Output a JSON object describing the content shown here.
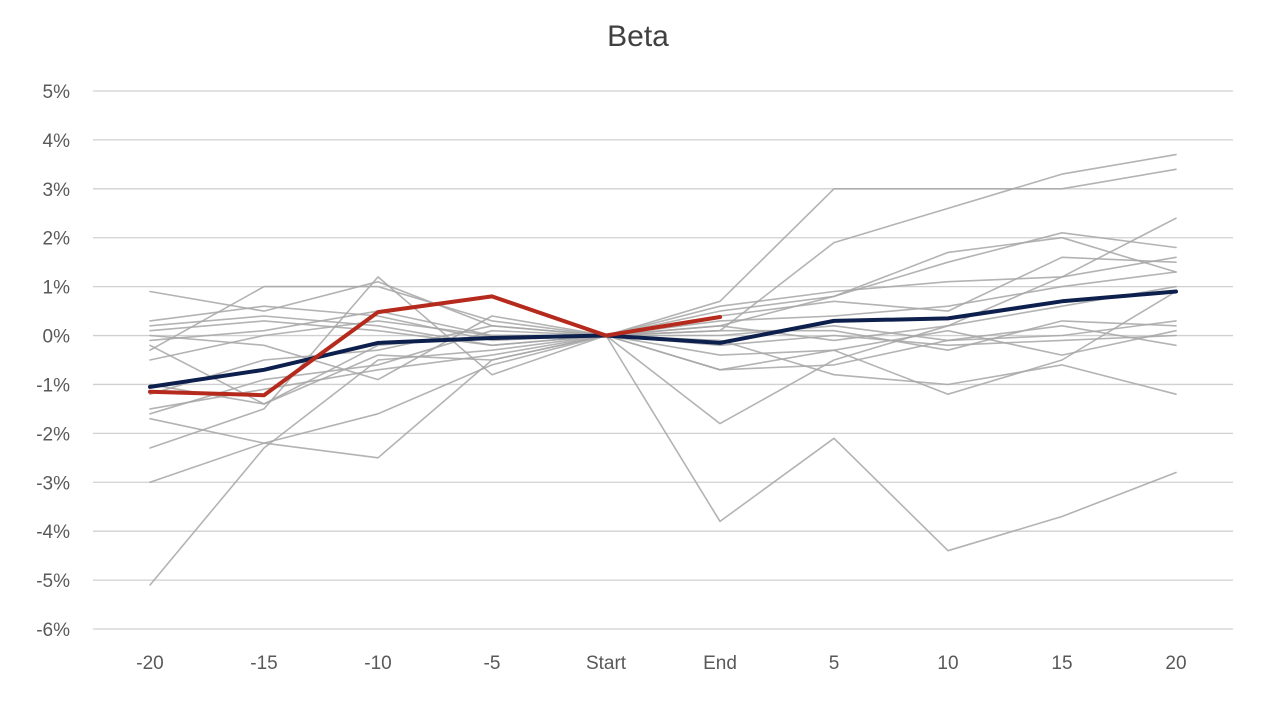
{
  "chart_data": {
    "type": "line",
    "title": "Beta",
    "xlabel": "",
    "ylabel": "",
    "categories": [
      "-20",
      "-15",
      "-10",
      "-5",
      "Start",
      "End",
      "5",
      "10",
      "15",
      "20"
    ],
    "ylim": [
      -6,
      5
    ],
    "yticks": [
      5,
      4,
      3,
      2,
      1,
      0,
      -1,
      -2,
      -3,
      -4,
      -5,
      -6
    ],
    "ytick_labels": [
      "5%",
      "4%",
      "3%",
      "2%",
      "1%",
      "0%",
      "-1%",
      "-2%",
      "-3%",
      "-4%",
      "-5%",
      "-6%"
    ],
    "grid": true,
    "legend": "none",
    "colors": {
      "background_series": "#a6a6a6",
      "average_series": "#0d1f4d",
      "current_series": "#b52a1c",
      "grid": "#d0d0d0",
      "text": "#595959",
      "title": "#404040"
    },
    "series": [
      {
        "role": "background",
        "values": [
          0.9,
          0.5,
          1.1,
          0.2,
          0,
          -3.8,
          -2.1,
          -4.4,
          -3.7,
          -2.8
        ]
      },
      {
        "role": "background",
        "values": [
          -5.1,
          -2.3,
          -0.5,
          -0.3,
          0,
          0.7,
          3.0,
          3.0,
          3.0,
          3.4
        ]
      },
      {
        "role": "background",
        "values": [
          -0.3,
          1.0,
          1.0,
          0.3,
          0,
          0.1,
          1.9,
          2.6,
          3.3,
          3.7
        ]
      },
      {
        "role": "background",
        "values": [
          0.2,
          0.4,
          0.2,
          -0.2,
          0,
          -1.8,
          -0.5,
          0.2,
          1.2,
          2.4
        ]
      },
      {
        "role": "background",
        "values": [
          -3.0,
          -2.2,
          -1.6,
          -0.6,
          0,
          0.5,
          0.8,
          1.7,
          2.0,
          1.3
        ]
      },
      {
        "role": "background",
        "values": [
          -1.7,
          -2.2,
          -2.5,
          -0.5,
          0,
          -0.7,
          -0.3,
          -1.2,
          -0.5,
          0.9
        ]
      },
      {
        "role": "background",
        "values": [
          -2.3,
          -1.5,
          1.2,
          -0.8,
          0,
          0.2,
          0.8,
          1.5,
          2.1,
          1.8
        ]
      },
      {
        "role": "background",
        "values": [
          -1.6,
          -0.9,
          -0.6,
          0.1,
          0,
          -0.1,
          -0.8,
          -1.0,
          -0.6,
          -1.2
        ]
      },
      {
        "role": "background",
        "values": [
          0.1,
          0.3,
          0.1,
          -0.2,
          0,
          0.4,
          0.7,
          0.5,
          1.6,
          1.5
        ]
      },
      {
        "role": "background",
        "values": [
          -0.2,
          -1.4,
          -0.4,
          -0.5,
          0,
          0.3,
          0.4,
          0.6,
          1.0,
          1.3
        ]
      },
      {
        "role": "background",
        "values": [
          0.0,
          -0.2,
          -0.9,
          0.4,
          0,
          0.1,
          0.1,
          -0.3,
          0.3,
          0.2
        ]
      },
      {
        "role": "background",
        "values": [
          -1.0,
          -1.4,
          -0.2,
          0.0,
          0,
          -0.2,
          0.0,
          -0.2,
          -0.1,
          0.0
        ]
      },
      {
        "role": "background",
        "values": [
          -0.5,
          0.0,
          0.3,
          0.0,
          0,
          -0.7,
          -0.6,
          -0.1,
          0.2,
          -0.2
        ]
      },
      {
        "role": "background",
        "values": [
          0.3,
          0.6,
          0.4,
          -0.1,
          0,
          -0.4,
          -0.3,
          0.1,
          -0.4,
          0.1
        ]
      },
      {
        "role": "background",
        "values": [
          -1.2,
          -0.5,
          -0.3,
          0.2,
          0,
          0.2,
          -0.1,
          0.2,
          0.6,
          1.0
        ]
      },
      {
        "role": "background",
        "values": [
          -0.1,
          0.1,
          0.5,
          0.0,
          0,
          0.0,
          0.2,
          -0.1,
          0.0,
          0.3
        ]
      },
      {
        "role": "background",
        "values": [
          -1.5,
          -1.1,
          -0.7,
          -0.4,
          0,
          0.6,
          0.9,
          1.1,
          1.2,
          1.6
        ]
      },
      {
        "role": "average",
        "values": [
          -1.05,
          -0.7,
          -0.15,
          -0.05,
          0,
          -0.15,
          0.3,
          0.35,
          0.7,
          0.9
        ]
      },
      {
        "role": "current",
        "values": [
          -1.15,
          -1.22,
          0.48,
          0.8,
          0,
          0.38,
          null,
          null,
          null,
          null
        ]
      }
    ]
  }
}
